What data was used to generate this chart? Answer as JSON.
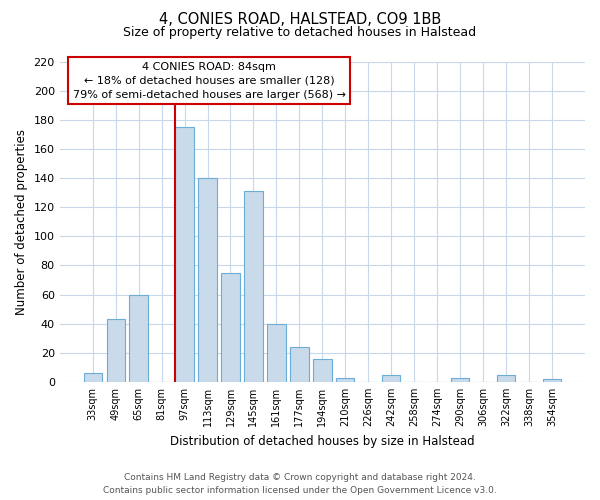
{
  "title": "4, CONIES ROAD, HALSTEAD, CO9 1BB",
  "subtitle": "Size of property relative to detached houses in Halstead",
  "xlabel": "Distribution of detached houses by size in Halstead",
  "ylabel": "Number of detached properties",
  "bar_color": "#c9daea",
  "bar_edge_color": "#6aaed6",
  "grid_color": "#c8d8ea",
  "background_color": "#ffffff",
  "categories": [
    "33sqm",
    "49sqm",
    "65sqm",
    "81sqm",
    "97sqm",
    "113sqm",
    "129sqm",
    "145sqm",
    "161sqm",
    "177sqm",
    "194sqm",
    "210sqm",
    "226sqm",
    "242sqm",
    "258sqm",
    "274sqm",
    "290sqm",
    "306sqm",
    "322sqm",
    "338sqm",
    "354sqm"
  ],
  "values": [
    6,
    43,
    60,
    0,
    175,
    140,
    75,
    131,
    40,
    24,
    16,
    3,
    0,
    5,
    0,
    0,
    3,
    0,
    5,
    0,
    2
  ],
  "ylim": [
    0,
    220
  ],
  "yticks": [
    0,
    20,
    40,
    60,
    80,
    100,
    120,
    140,
    160,
    180,
    200,
    220
  ],
  "marker_index": 4,
  "annotation_title": "4 CONIES ROAD: 84sqm",
  "annotation_line1": "← 18% of detached houses are smaller (128)",
  "annotation_line2": "79% of semi-detached houses are larger (568) →",
  "annotation_box_color": "#ffffff",
  "annotation_border_color": "#cc0000",
  "vline_color": "#cc0000",
  "footer_line1": "Contains HM Land Registry data © Crown copyright and database right 2024.",
  "footer_line2": "Contains public sector information licensed under the Open Government Licence v3.0."
}
